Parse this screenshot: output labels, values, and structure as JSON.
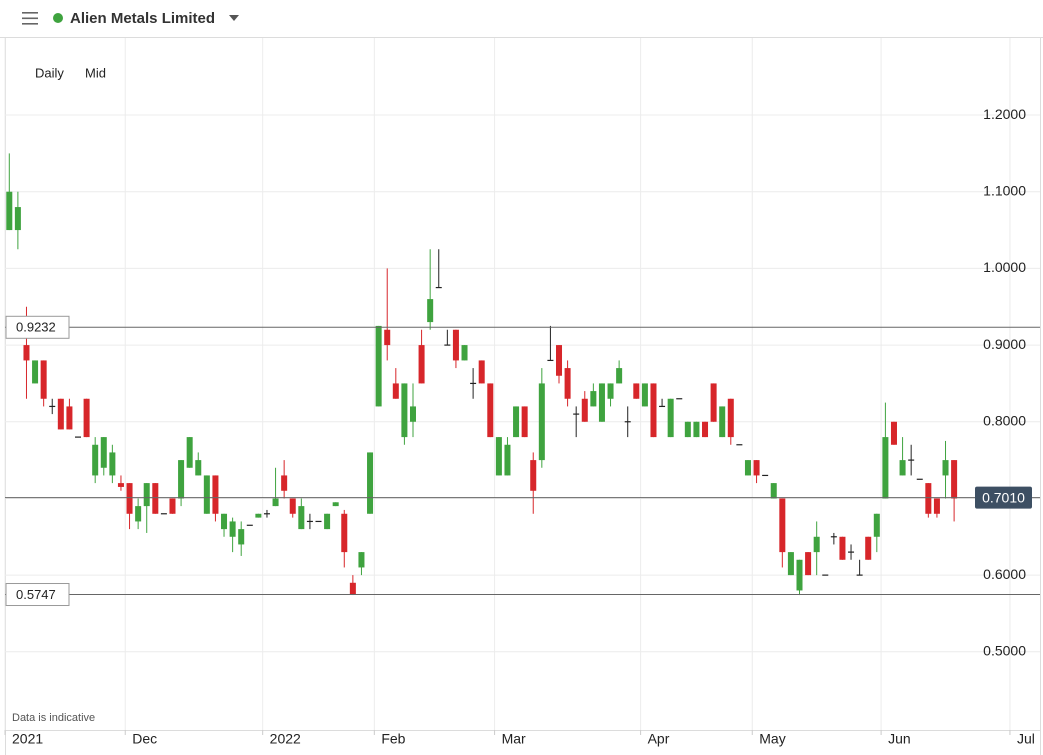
{
  "chart_data": {
    "type": "candlestick",
    "title": "Alien Metals Limited",
    "interval": "Daily",
    "price_type": "Mid",
    "footnote": "Data is indicative",
    "up_color": "#3fa33f",
    "down_color": "#d7262a",
    "doji_color": "#222222",
    "grid": true,
    "xlim": [
      -0.5,
      120
    ],
    "xticks": [
      {
        "value": -0.5,
        "label": "2021"
      },
      {
        "value": 13.5,
        "label": "Dec"
      },
      {
        "value": 29.5,
        "label": "2022"
      },
      {
        "value": 42.5,
        "label": "Feb"
      },
      {
        "value": 56.5,
        "label": "Mar"
      },
      {
        "value": 73.5,
        "label": "Apr"
      },
      {
        "value": 86.5,
        "label": "May"
      },
      {
        "value": 101.5,
        "label": "Jun"
      },
      {
        "value": 116.5,
        "label": "Jul"
      }
    ],
    "ylim": [
      0.398,
      1.3005
    ],
    "yticks": [
      {
        "value": 0.5,
        "label": "0.5000"
      },
      {
        "value": 0.6,
        "label": "0.6000"
      },
      {
        "value": 0.7,
        "label": "0.7000"
      },
      {
        "value": 0.8,
        "label": "0.8000"
      },
      {
        "value": 0.9,
        "label": "0.9000"
      },
      {
        "value": 1.0,
        "label": "1.0000"
      },
      {
        "value": 1.1,
        "label": "1.1000"
      },
      {
        "value": 1.2,
        "label": "1.2000"
      }
    ],
    "reference_lines": [
      {
        "value": 0.9232,
        "label": "0.9232",
        "side": "left"
      },
      {
        "value": 0.701,
        "label": "0.7010",
        "side": "right"
      },
      {
        "value": 0.5747,
        "label": "0.5747",
        "side": "left"
      }
    ],
    "open": [
      1.05,
      1.05,
      0.9,
      0.85,
      0.88,
      0.82,
      0.83,
      0.82,
      0.78,
      0.83,
      0.73,
      0.74,
      0.73,
      0.72,
      0.72,
      0.67,
      0.69,
      0.72,
      0.68,
      0.7,
      0.7,
      0.74,
      0.73,
      0.68,
      0.73,
      0.66,
      0.65,
      0.64,
      0.665,
      0.675,
      0.68,
      0.69,
      0.73,
      0.7,
      0.66,
      0.67,
      0.67,
      0.66,
      0.69,
      0.68,
      0.59,
      0.61,
      0.68,
      0.82,
      0.92,
      0.85,
      0.78,
      0.8,
      0.9,
      0.93,
      0.975,
      0.9,
      0.92,
      0.88,
      0.85,
      0.88,
      0.85,
      0.73,
      0.73,
      0.78,
      0.82,
      0.75,
      0.75,
      0.88,
      0.9,
      0.87,
      0.81,
      0.83,
      0.82,
      0.8,
      0.83,
      0.85,
      0.8,
      0.85,
      0.82,
      0.85,
      0.82,
      0.78,
      0.83,
      0.78,
      0.78,
      0.8,
      0.85,
      0.78,
      0.83,
      0.77,
      0.73,
      0.75,
      0.73,
      0.7,
      0.7,
      0.6,
      0.58,
      0.63,
      0.63,
      0.6,
      0.65,
      0.65,
      0.63,
      0.6,
      0.65,
      0.65,
      0.7,
      0.8,
      0.73,
      0.75,
      0.725,
      0.72,
      0.7,
      0.73,
      0.75
    ],
    "high": [
      1.15,
      1.1,
      0.95,
      0.88,
      0.88,
      0.83,
      0.83,
      0.83,
      0.78,
      0.83,
      0.78,
      0.78,
      0.77,
      0.73,
      0.72,
      0.7,
      0.72,
      0.72,
      0.68,
      0.7,
      0.75,
      0.78,
      0.76,
      0.73,
      0.73,
      0.68,
      0.675,
      0.67,
      0.665,
      0.68,
      0.685,
      0.74,
      0.75,
      0.7,
      0.7,
      0.68,
      0.67,
      0.68,
      0.695,
      0.685,
      0.6,
      0.63,
      0.76,
      0.925,
      1.0,
      0.87,
      0.85,
      0.85,
      0.92,
      1.025,
      1.025,
      0.92,
      0.92,
      0.9,
      0.87,
      0.88,
      0.85,
      0.78,
      0.78,
      0.82,
      0.82,
      0.76,
      0.87,
      0.925,
      0.9,
      0.88,
      0.82,
      0.84,
      0.85,
      0.85,
      0.85,
      0.88,
      0.82,
      0.85,
      0.85,
      0.85,
      0.83,
      0.83,
      0.83,
      0.8,
      0.8,
      0.8,
      0.85,
      0.82,
      0.83,
      0.77,
      0.75,
      0.75,
      0.73,
      0.72,
      0.7,
      0.63,
      0.62,
      0.63,
      0.67,
      0.6,
      0.655,
      0.65,
      0.64,
      0.62,
      0.65,
      0.68,
      0.825,
      0.8,
      0.78,
      0.77,
      0.725,
      0.72,
      0.7,
      0.775,
      0.75
    ],
    "low": [
      1.05,
      1.025,
      0.83,
      0.85,
      0.82,
      0.81,
      0.79,
      0.79,
      0.78,
      0.78,
      0.72,
      0.73,
      0.72,
      0.71,
      0.66,
      0.66,
      0.655,
      0.68,
      0.68,
      0.68,
      0.69,
      0.74,
      0.73,
      0.68,
      0.67,
      0.65,
      0.63,
      0.625,
      0.665,
      0.675,
      0.675,
      0.69,
      0.7,
      0.675,
      0.66,
      0.66,
      0.67,
      0.66,
      0.69,
      0.61,
      0.574,
      0.6,
      0.68,
      0.82,
      0.88,
      0.83,
      0.77,
      0.78,
      0.85,
      0.92,
      0.975,
      0.9,
      0.87,
      0.88,
      0.83,
      0.85,
      0.78,
      0.73,
      0.73,
      0.78,
      0.78,
      0.68,
      0.74,
      0.88,
      0.85,
      0.82,
      0.78,
      0.8,
      0.82,
      0.8,
      0.82,
      0.85,
      0.78,
      0.83,
      0.82,
      0.78,
      0.82,
      0.78,
      0.83,
      0.78,
      0.78,
      0.78,
      0.8,
      0.78,
      0.77,
      0.77,
      0.73,
      0.72,
      0.73,
      0.7,
      0.61,
      0.6,
      0.574,
      0.6,
      0.6,
      0.6,
      0.64,
      0.62,
      0.62,
      0.6,
      0.62,
      0.63,
      0.7,
      0.77,
      0.73,
      0.73,
      0.725,
      0.675,
      0.675,
      0.7,
      0.67
    ],
    "close": [
      1.1,
      1.08,
      0.88,
      0.88,
      0.83,
      0.82,
      0.79,
      0.79,
      0.78,
      0.78,
      0.77,
      0.78,
      0.76,
      0.715,
      0.68,
      0.69,
      0.72,
      0.68,
      0.68,
      0.68,
      0.75,
      0.78,
      0.75,
      0.73,
      0.68,
      0.68,
      0.67,
      0.66,
      0.665,
      0.68,
      0.68,
      0.7,
      0.71,
      0.68,
      0.69,
      0.67,
      0.67,
      0.68,
      0.695,
      0.63,
      0.575,
      0.63,
      0.76,
      0.925,
      0.9,
      0.83,
      0.85,
      0.82,
      0.85,
      0.96,
      0.975,
      0.9,
      0.88,
      0.9,
      0.85,
      0.85,
      0.78,
      0.78,
      0.77,
      0.82,
      0.78,
      0.71,
      0.85,
      0.88,
      0.86,
      0.83,
      0.81,
      0.8,
      0.84,
      0.85,
      0.85,
      0.87,
      0.8,
      0.83,
      0.85,
      0.78,
      0.82,
      0.83,
      0.83,
      0.8,
      0.8,
      0.78,
      0.8,
      0.82,
      0.78,
      0.77,
      0.75,
      0.73,
      0.73,
      0.72,
      0.63,
      0.63,
      0.62,
      0.6,
      0.65,
      0.6,
      0.65,
      0.62,
      0.63,
      0.6,
      0.62,
      0.68,
      0.78,
      0.77,
      0.75,
      0.75,
      0.725,
      0.68,
      0.68,
      0.75,
      0.7
    ]
  }
}
